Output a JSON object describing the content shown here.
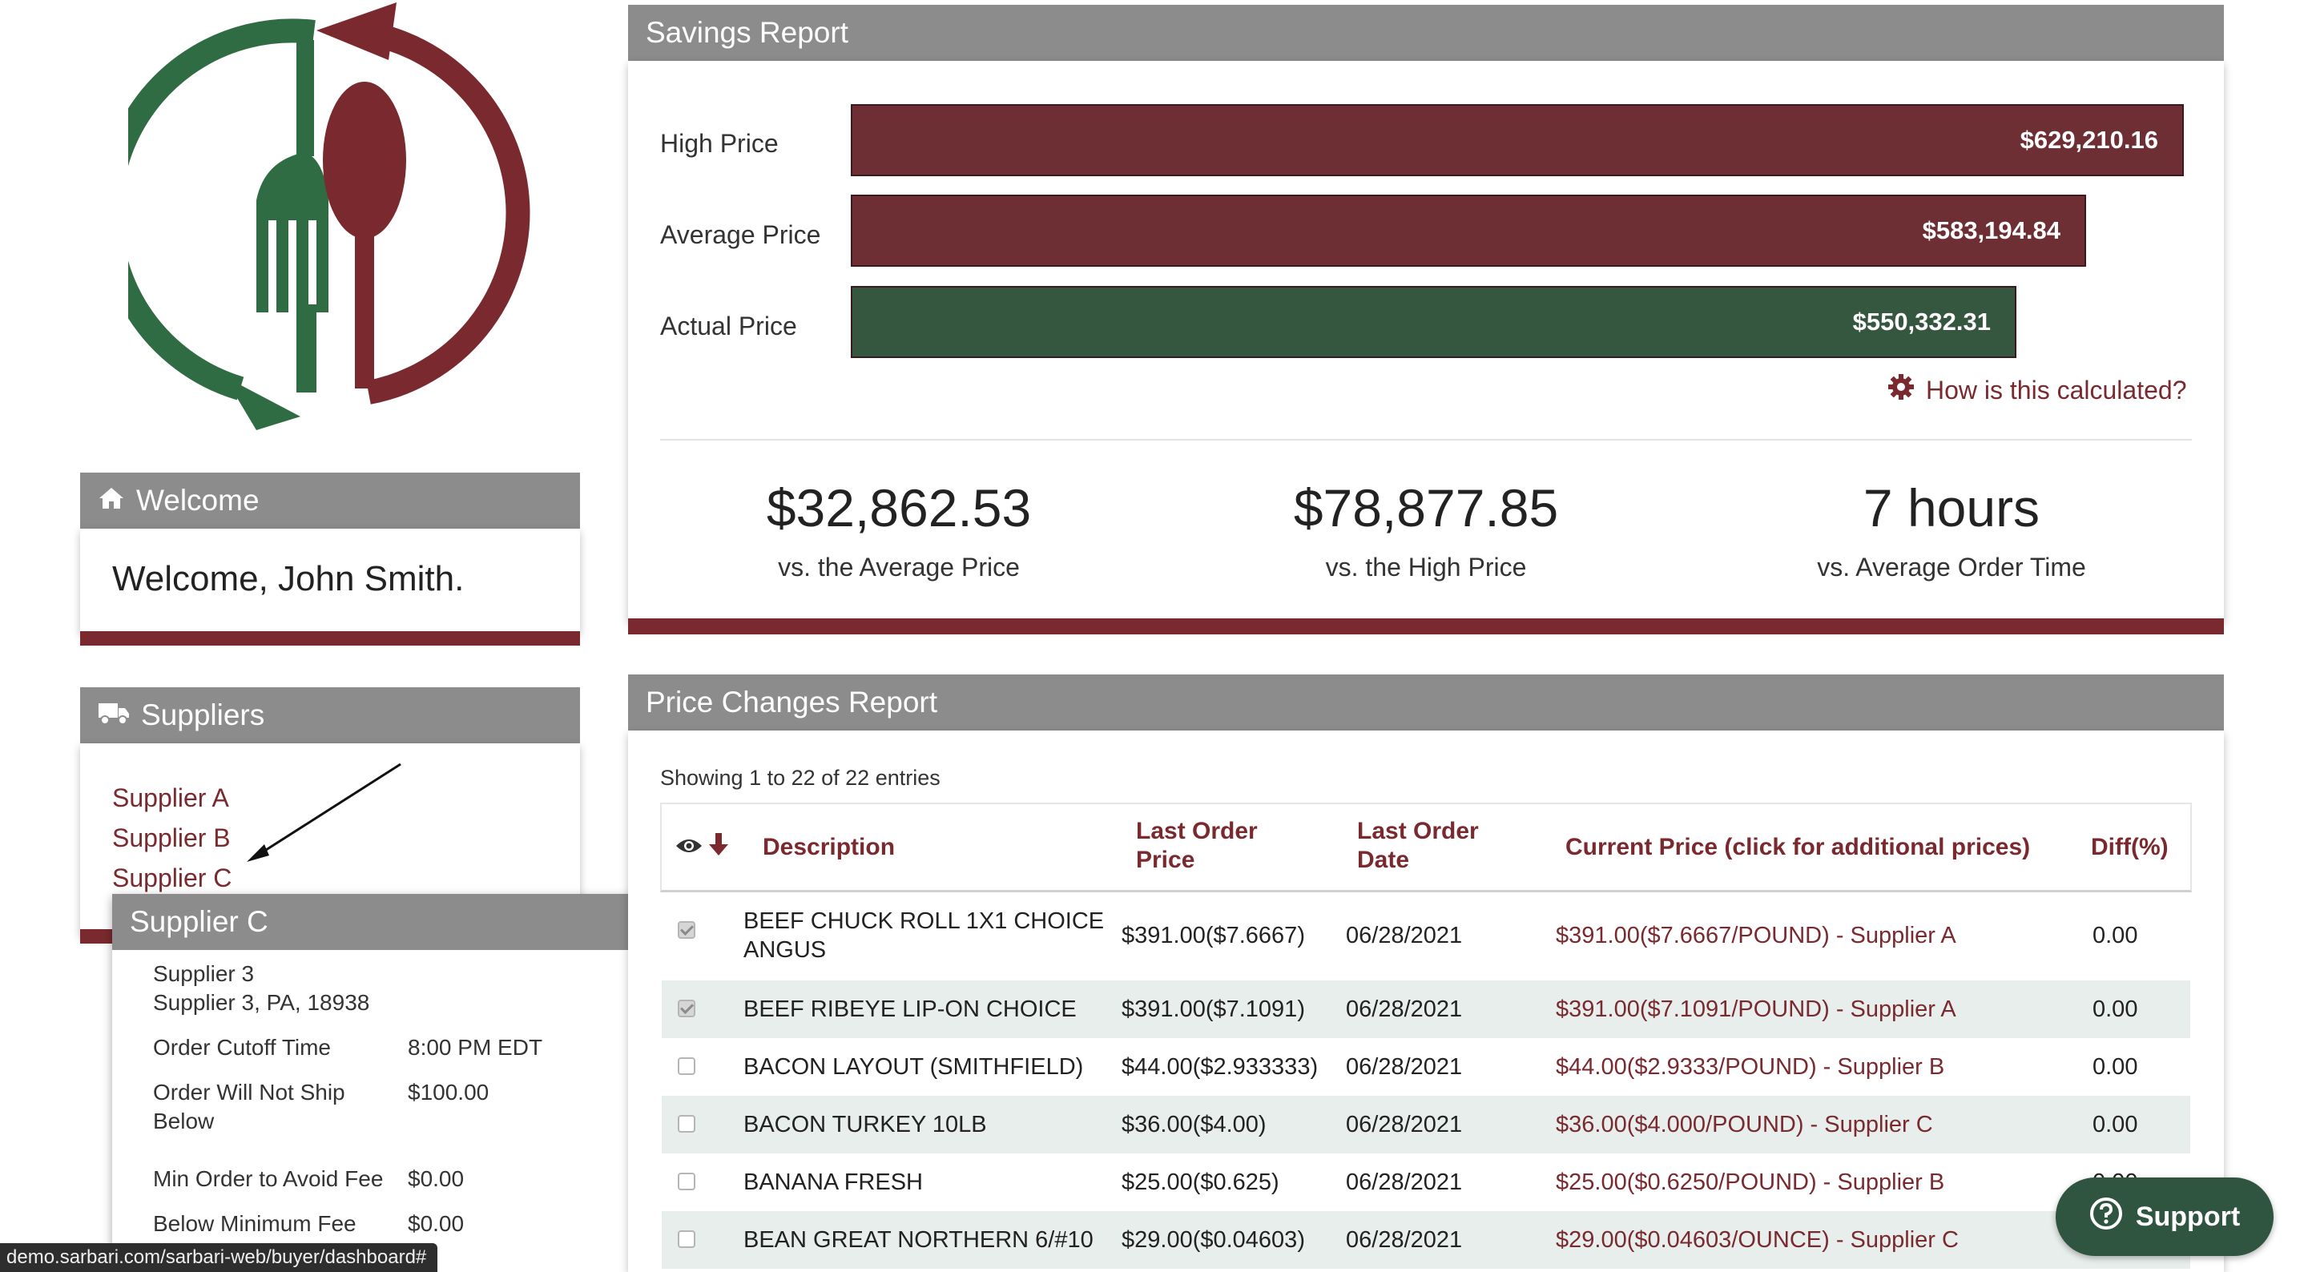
{
  "welcome": {
    "title": "Welcome",
    "message": "Welcome, John Smith."
  },
  "suppliers": {
    "title": "Suppliers",
    "items": [
      "Supplier A",
      "Supplier B",
      "Supplier C"
    ]
  },
  "supplier_popover": {
    "title": "Supplier C",
    "name": "Supplier 3",
    "address": "Supplier 3, PA, 18938",
    "fields": [
      {
        "label": "Order Cutoff Time",
        "value": "8:00 PM EDT"
      },
      {
        "label": "Order Will Not Ship Below",
        "value": "$100.00"
      },
      {
        "label": "Min Order to Avoid Fee",
        "value": "$0.00"
      },
      {
        "label": "Below Minimum Fee",
        "value": "$0.00"
      }
    ]
  },
  "savings": {
    "title": "Savings Report",
    "bars": [
      {
        "label": "High Price",
        "value_text": "$629,210.16",
        "value": 629210.16,
        "color": "#6e2f34"
      },
      {
        "label": "Average Price",
        "value_text": "$583,194.84",
        "value": 583194.84,
        "color": "#6e2f34"
      },
      {
        "label": "Actual Price",
        "value_text": "$550,332.31",
        "value": 550332.31,
        "color": "#35573f"
      }
    ],
    "how_link": "How is this calculated?",
    "stats": [
      {
        "value": "$32,862.53",
        "caption": "vs. the Average Price"
      },
      {
        "value": "$78,877.85",
        "caption": "vs. the High Price"
      },
      {
        "value": "7 hours",
        "caption": "vs. Average Order Time"
      }
    ]
  },
  "price_changes": {
    "title": "Price Changes Report",
    "showing": "Showing 1 to 22 of 22 entries",
    "headers": {
      "description": "Description",
      "last_price_1": "Last Order",
      "last_price_2": "Price",
      "last_date_1": "Last Order",
      "last_date_2": "Date",
      "current": "Current Price (click for additional prices)",
      "diff": "Diff(%)"
    },
    "rows": [
      {
        "checked": true,
        "desc1": "BEEF CHUCK ROLL 1X1 CHOICE",
        "desc2": "ANGUS",
        "last_price": "$391.00($7.6667)",
        "date": "06/28/2021",
        "current": "$391.00($7.6667/POUND) - Supplier A",
        "diff": "0.00"
      },
      {
        "checked": true,
        "desc1": "BEEF RIBEYE LIP-ON CHOICE",
        "desc2": "",
        "last_price": "$391.00($7.1091)",
        "date": "06/28/2021",
        "current": "$391.00($7.1091/POUND) - Supplier A",
        "diff": "0.00"
      },
      {
        "checked": false,
        "desc1": "BACON LAYOUT (SMITHFIELD)",
        "desc2": "",
        "last_price": "$44.00($2.933333)",
        "date": "06/28/2021",
        "current": "$44.00($2.9333/POUND) - Supplier B",
        "diff": "0.00"
      },
      {
        "checked": false,
        "desc1": "BACON TURKEY 10LB",
        "desc2": "",
        "last_price": "$36.00($4.00)",
        "date": "06/28/2021",
        "current": "$36.00($4.000/POUND) - Supplier C",
        "diff": "0.00"
      },
      {
        "checked": false,
        "desc1": "BANANA FRESH",
        "desc2": "",
        "last_price": "$25.00($0.625)",
        "date": "06/28/2021",
        "current": "$25.00($0.6250/POUND) - Supplier B",
        "diff": "0.00"
      },
      {
        "checked": false,
        "desc1": "BEAN GREAT NORTHERN 6/#10",
        "desc2": "",
        "last_price": "$29.00($0.04603)",
        "date": "06/28/2021",
        "current": "$29.00($0.04603/OUNCE) - Supplier C",
        "diff": ""
      }
    ]
  },
  "support_button": "Support",
  "status_url": "demo.sarbari.com/sarbari-web/buyer/dashboard#",
  "colors": {
    "maroon": "#7a2a2f",
    "green": "#35573f",
    "header_gray": "#8c8c8c"
  }
}
